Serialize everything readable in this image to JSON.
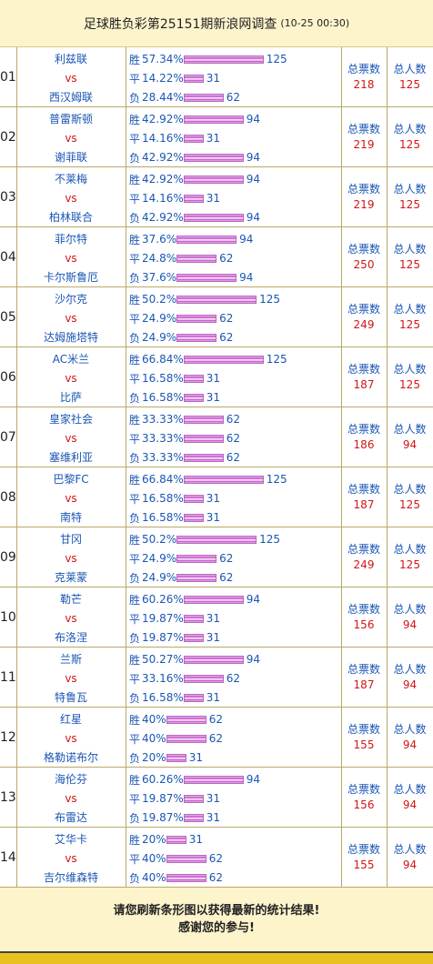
{
  "header": {
    "title": "足球胜负彩第25151期新浪网调查",
    "datetime": "(10-25 00:30)"
  },
  "labels": {
    "vs": "vs",
    "win": "胜",
    "draw": "平",
    "lose": "负",
    "total_votes": "总票数",
    "total_people": "总人数"
  },
  "colors": {
    "team": "#1a56b3",
    "vs": "#d21515",
    "value": "#d21515",
    "header_bg": "#fdf4cc"
  },
  "matches": [
    {
      "no": "01",
      "home": "利兹联",
      "away": "西汉姆联",
      "win": {
        "pct": "57.34%",
        "count": "125"
      },
      "draw": {
        "pct": "14.22%",
        "count": "31"
      },
      "lose": {
        "pct": "28.44%",
        "count": "62"
      },
      "votes": "218",
      "people": "125"
    },
    {
      "no": "02",
      "home": "普雷斯顿",
      "away": "谢菲联",
      "win": {
        "pct": "42.92%",
        "count": "94"
      },
      "draw": {
        "pct": "14.16%",
        "count": "31"
      },
      "lose": {
        "pct": "42.92%",
        "count": "94"
      },
      "votes": "219",
      "people": "125"
    },
    {
      "no": "03",
      "home": "不莱梅",
      "away": "柏林联合",
      "win": {
        "pct": "42.92%",
        "count": "94"
      },
      "draw": {
        "pct": "14.16%",
        "count": "31"
      },
      "lose": {
        "pct": "42.92%",
        "count": "94"
      },
      "votes": "219",
      "people": "125"
    },
    {
      "no": "04",
      "home": "菲尔特",
      "away": "卡尔斯鲁厄",
      "win": {
        "pct": "37.6%",
        "count": "94"
      },
      "draw": {
        "pct": "24.8%",
        "count": "62"
      },
      "lose": {
        "pct": "37.6%",
        "count": "94"
      },
      "votes": "250",
      "people": "125"
    },
    {
      "no": "05",
      "home": "沙尔克",
      "away": "达姆施塔特",
      "win": {
        "pct": "50.2%",
        "count": "125"
      },
      "draw": {
        "pct": "24.9%",
        "count": "62"
      },
      "lose": {
        "pct": "24.9%",
        "count": "62"
      },
      "votes": "249",
      "people": "125"
    },
    {
      "no": "06",
      "home": "AC米兰",
      "away": "比萨",
      "win": {
        "pct": "66.84%",
        "count": "125"
      },
      "draw": {
        "pct": "16.58%",
        "count": "31"
      },
      "lose": {
        "pct": "16.58%",
        "count": "31"
      },
      "votes": "187",
      "people": "125"
    },
    {
      "no": "07",
      "home": "皇家社会",
      "away": "塞维利亚",
      "win": {
        "pct": "33.33%",
        "count": "62"
      },
      "draw": {
        "pct": "33.33%",
        "count": "62"
      },
      "lose": {
        "pct": "33.33%",
        "count": "62"
      },
      "votes": "186",
      "people": "94"
    },
    {
      "no": "08",
      "home": "巴黎FC",
      "away": "南特",
      "win": {
        "pct": "66.84%",
        "count": "125"
      },
      "draw": {
        "pct": "16.58%",
        "count": "31"
      },
      "lose": {
        "pct": "16.58%",
        "count": "31"
      },
      "votes": "187",
      "people": "125"
    },
    {
      "no": "09",
      "home": "甘冈",
      "away": "克莱蒙",
      "win": {
        "pct": "50.2%",
        "count": "125"
      },
      "draw": {
        "pct": "24.9%",
        "count": "62"
      },
      "lose": {
        "pct": "24.9%",
        "count": "62"
      },
      "votes": "249",
      "people": "125"
    },
    {
      "no": "10",
      "home": "勒芒",
      "away": "布洛涅",
      "win": {
        "pct": "60.26%",
        "count": "94"
      },
      "draw": {
        "pct": "19.87%",
        "count": "31"
      },
      "lose": {
        "pct": "19.87%",
        "count": "31"
      },
      "votes": "156",
      "people": "94"
    },
    {
      "no": "11",
      "home": "兰斯",
      "away": "特鲁瓦",
      "win": {
        "pct": "50.27%",
        "count": "94"
      },
      "draw": {
        "pct": "33.16%",
        "count": "62"
      },
      "lose": {
        "pct": "16.58%",
        "count": "31"
      },
      "votes": "187",
      "people": "94"
    },
    {
      "no": "12",
      "home": "红星",
      "away": "格勒诺布尔",
      "win": {
        "pct": "40%",
        "count": "62"
      },
      "draw": {
        "pct": "40%",
        "count": "62"
      },
      "lose": {
        "pct": "20%",
        "count": "31"
      },
      "votes": "155",
      "people": "94"
    },
    {
      "no": "13",
      "home": "海伦芬",
      "away": "布雷达",
      "win": {
        "pct": "60.26%",
        "count": "94"
      },
      "draw": {
        "pct": "19.87%",
        "count": "31"
      },
      "lose": {
        "pct": "19.87%",
        "count": "31"
      },
      "votes": "156",
      "people": "94"
    },
    {
      "no": "14",
      "home": "艾华卡",
      "away": "吉尔维森特",
      "win": {
        "pct": "20%",
        "count": "31"
      },
      "draw": {
        "pct": "40%",
        "count": "62"
      },
      "lose": {
        "pct": "40%",
        "count": "62"
      },
      "votes": "155",
      "people": "94"
    }
  ],
  "footer": {
    "line1": "请您刷新条形图以获得最新的统计结果!",
    "line2": "感谢您的参与!"
  }
}
